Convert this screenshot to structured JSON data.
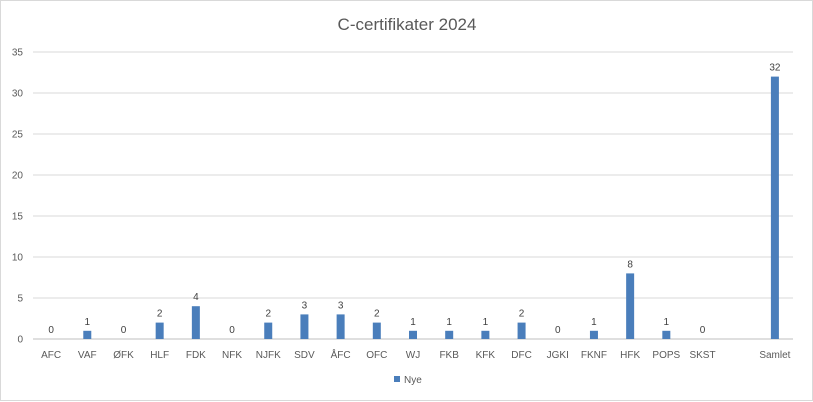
{
  "chart_data": {
    "type": "bar",
    "title": "C-certifikater 2024",
    "xlabel": "",
    "ylabel": "",
    "categories": [
      "AFC",
      "VAF",
      "ØFK",
      "HLF",
      "FDK",
      "NFK",
      "NJFK",
      "SDV",
      "ÅFC",
      "OFC",
      "WJ",
      "FKB",
      "KFK",
      "DFC",
      "JGKI",
      "FKNF",
      "HFK",
      "POPS",
      "SKST",
      "",
      "Samlet"
    ],
    "series": [
      {
        "name": "Nye",
        "values": [
          0,
          1,
          0,
          2,
          4,
          0,
          2,
          3,
          3,
          2,
          1,
          1,
          1,
          2,
          0,
          1,
          8,
          1,
          0,
          null,
          32
        ],
        "color": "#4a7ebb"
      }
    ],
    "data_labels": [
      "0",
      "1",
      "0",
      "2",
      "4",
      "0",
      "2",
      "3",
      "3",
      "2",
      "1",
      "1",
      "1",
      "2",
      "0",
      "1",
      "8",
      "1",
      "0",
      "",
      "32"
    ],
    "ylim": [
      0,
      35
    ],
    "yticks": [
      0,
      5,
      10,
      15,
      20,
      25,
      30,
      35
    ],
    "grid": true,
    "legend": "bottom-center"
  }
}
